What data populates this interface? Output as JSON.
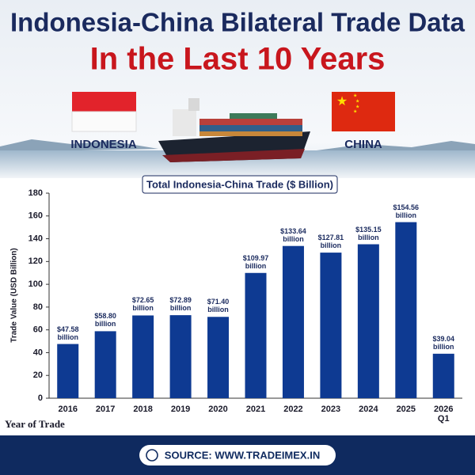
{
  "header": {
    "title": "Indonesia-China Bilateral Trade Data",
    "subtitle": "In the Last 10 Years",
    "left_label": "INDONESIA",
    "right_label": "CHINA"
  },
  "chart_data": {
    "type": "bar",
    "title": "Total Indonesia-China Trade ($ Billion)",
    "categories": [
      "2016",
      "2017",
      "2018",
      "2019",
      "2020",
      "2021",
      "2022",
      "2023",
      "2024",
      "2025",
      "2026 Q1"
    ],
    "values": [
      47.58,
      58.8,
      72.65,
      72.89,
      71.4,
      109.97,
      133.64,
      127.81,
      135.15,
      154.56,
      39.04
    ],
    "value_labels": [
      "$47.58 billion",
      "$58.80 billion",
      "$72.65 billion",
      "$72.89 billion",
      "$71.40 billion",
      "$109.97 billion",
      "$133.64 billion",
      "$127.81 billion",
      "$135.15 billion",
      "$154.56 billion",
      "$39.04 billion"
    ],
    "color": "#0e3a92",
    "ylim": [
      0,
      180
    ],
    "yticks": [
      0,
      20,
      40,
      60,
      80,
      100,
      120,
      140,
      160,
      180
    ],
    "y_label": "Trade Value (USD Billion)",
    "x_label": "Year of Trade",
    "grid": false
  },
  "footer": {
    "source": "SOURCE: WWW.TRADEIMEX.IN"
  }
}
